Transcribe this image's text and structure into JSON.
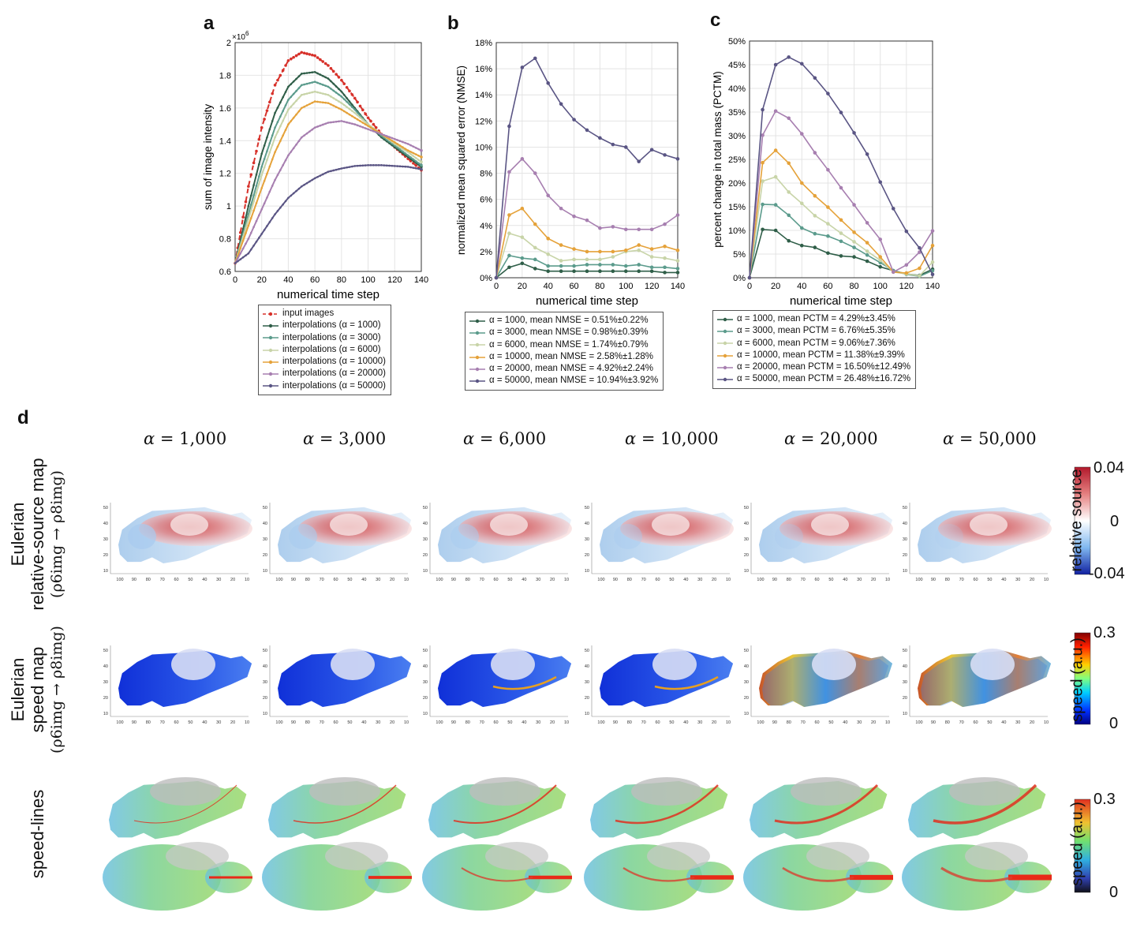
{
  "panels": {
    "a": "a",
    "b": "b",
    "c": "c",
    "d": "d"
  },
  "chart_data": [
    {
      "id": "a",
      "type": "line",
      "xlabel": "numerical time step",
      "ylabel": "sum of image intensity",
      "exponent_label": "×10",
      "exponent_power": "6",
      "xlim": [
        0,
        140
      ],
      "ylim": [
        0.6,
        2.0
      ],
      "xticks": [
        "0",
        "20",
        "40",
        "60",
        "80",
        "100",
        "120",
        "140"
      ],
      "yticks": [
        "0.6",
        "0.8",
        "1",
        "1.2",
        "1.4",
        "1.6",
        "1.8",
        "2"
      ],
      "series": [
        {
          "name": "input images",
          "color": "#d7312a",
          "dashed": true,
          "x": [
            0,
            10,
            20,
            30,
            40,
            50,
            60,
            70,
            80,
            90,
            100,
            110,
            120,
            130,
            140
          ],
          "y": [
            0.65,
            1.12,
            1.48,
            1.74,
            1.89,
            1.94,
            1.92,
            1.86,
            1.77,
            1.66,
            1.54,
            1.44,
            1.36,
            1.29,
            1.22
          ]
        },
        {
          "name": "interpolations (α = 1000)",
          "color": "#2f5e48",
          "dashed": false,
          "x": [
            0,
            10,
            20,
            30,
            40,
            50,
            60,
            70,
            80,
            90,
            100,
            110,
            120,
            130,
            140
          ],
          "y": [
            0.65,
            1.0,
            1.32,
            1.57,
            1.73,
            1.81,
            1.82,
            1.78,
            1.7,
            1.6,
            1.5,
            1.42,
            1.36,
            1.3,
            1.24
          ]
        },
        {
          "name": "interpolations (α = 3000)",
          "color": "#5b9b8c",
          "dashed": false,
          "x": [
            0,
            10,
            20,
            30,
            40,
            50,
            60,
            70,
            80,
            90,
            100,
            110,
            120,
            130,
            140
          ],
          "y": [
            0.65,
            0.95,
            1.24,
            1.48,
            1.65,
            1.74,
            1.76,
            1.73,
            1.67,
            1.59,
            1.5,
            1.43,
            1.37,
            1.31,
            1.25
          ]
        },
        {
          "name": "interpolations (α = 6000)",
          "color": "#c8d4a8",
          "dashed": false,
          "x": [
            0,
            10,
            20,
            30,
            40,
            50,
            60,
            70,
            80,
            90,
            100,
            110,
            120,
            130,
            140
          ],
          "y": [
            0.65,
            0.92,
            1.19,
            1.42,
            1.59,
            1.68,
            1.7,
            1.68,
            1.63,
            1.57,
            1.5,
            1.44,
            1.38,
            1.33,
            1.27
          ]
        },
        {
          "name": "interpolations (α = 10000)",
          "color": "#e5a23a",
          "dashed": false,
          "x": [
            0,
            10,
            20,
            30,
            40,
            50,
            60,
            70,
            80,
            90,
            100,
            110,
            120,
            130,
            140
          ],
          "y": [
            0.65,
            0.88,
            1.11,
            1.33,
            1.5,
            1.6,
            1.64,
            1.63,
            1.59,
            1.54,
            1.49,
            1.44,
            1.39,
            1.34,
            1.3
          ]
        },
        {
          "name": "interpolations (α = 20000)",
          "color": "#a77fb0",
          "dashed": false,
          "x": [
            0,
            10,
            20,
            30,
            40,
            50,
            60,
            70,
            80,
            90,
            100,
            110,
            120,
            130,
            140
          ],
          "y": [
            0.65,
            0.8,
            0.98,
            1.16,
            1.31,
            1.42,
            1.48,
            1.51,
            1.52,
            1.5,
            1.47,
            1.44,
            1.41,
            1.38,
            1.34
          ]
        },
        {
          "name": "interpolations (α = 50000)",
          "color": "#5a5584",
          "dashed": false,
          "x": [
            0,
            10,
            20,
            30,
            40,
            50,
            60,
            70,
            80,
            90,
            100,
            110,
            120,
            130,
            140
          ],
          "y": [
            0.65,
            0.71,
            0.83,
            0.95,
            1.05,
            1.12,
            1.17,
            1.21,
            1.23,
            1.245,
            1.25,
            1.25,
            1.245,
            1.24,
            1.225
          ]
        }
      ],
      "legend": [
        "input images",
        "interpolations (α = 1000)",
        "interpolations (α = 3000)",
        "interpolations (α = 6000)",
        "interpolations (α = 10000)",
        "interpolations (α = 20000)",
        "interpolations (α = 50000)"
      ]
    },
    {
      "id": "b",
      "type": "line",
      "xlabel": "numerical time step",
      "ylabel": "normalized mean squared error (NMSE)",
      "xlim": [
        0,
        140
      ],
      "ylim": [
        0,
        18
      ],
      "xticks": [
        "0",
        "20",
        "40",
        "60",
        "80",
        "100",
        "120",
        "140"
      ],
      "yticks": [
        "0%",
        "2%",
        "4%",
        "6%",
        "8%",
        "10%",
        "12%",
        "14%",
        "16%",
        "18%"
      ],
      "series": [
        {
          "name": "α = 1000",
          "color": "#2f5e48",
          "x": [
            0,
            10,
            20,
            30,
            40,
            50,
            60,
            70,
            80,
            90,
            100,
            110,
            120,
            130,
            140
          ],
          "y": [
            0,
            0.8,
            1.1,
            0.7,
            0.5,
            0.5,
            0.5,
            0.5,
            0.5,
            0.5,
            0.5,
            0.5,
            0.5,
            0.4,
            0.4
          ]
        },
        {
          "name": "α = 3000",
          "color": "#5b9b8c",
          "x": [
            0,
            10,
            20,
            30,
            40,
            50,
            60,
            70,
            80,
            90,
            100,
            110,
            120,
            130,
            140
          ],
          "y": [
            0,
            1.7,
            1.5,
            1.4,
            0.9,
            0.9,
            0.9,
            1.0,
            1.0,
            1.0,
            0.9,
            1.0,
            0.8,
            0.8,
            0.7
          ]
        },
        {
          "name": "α = 6000",
          "color": "#c8d4a8",
          "x": [
            0,
            10,
            20,
            30,
            40,
            50,
            60,
            70,
            80,
            90,
            100,
            110,
            120,
            130,
            140
          ],
          "y": [
            0,
            3.4,
            3.1,
            2.3,
            1.8,
            1.3,
            1.4,
            1.4,
            1.4,
            1.6,
            2.0,
            2.1,
            1.6,
            1.5,
            1.3
          ]
        },
        {
          "name": "α = 10000",
          "color": "#e5a23a",
          "x": [
            0,
            10,
            20,
            30,
            40,
            50,
            60,
            70,
            80,
            90,
            100,
            110,
            120,
            130,
            140
          ],
          "y": [
            0,
            4.8,
            5.3,
            4.1,
            3.0,
            2.5,
            2.2,
            2.0,
            2.0,
            2.0,
            2.1,
            2.5,
            2.2,
            2.4,
            2.1
          ]
        },
        {
          "name": "α = 20000",
          "color": "#a77fb0",
          "x": [
            0,
            10,
            20,
            30,
            40,
            50,
            60,
            70,
            80,
            90,
            100,
            110,
            120,
            130,
            140
          ],
          "y": [
            0,
            8.1,
            9.1,
            8.0,
            6.3,
            5.3,
            4.7,
            4.4,
            3.8,
            3.9,
            3.7,
            3.7,
            3.7,
            4.1,
            4.8
          ]
        },
        {
          "name": "α = 50000",
          "color": "#5a5584",
          "x": [
            0,
            10,
            20,
            30,
            40,
            50,
            60,
            70,
            80,
            90,
            100,
            110,
            120,
            130,
            140
          ],
          "y": [
            0,
            11.6,
            16.1,
            16.8,
            14.9,
            13.3,
            12.1,
            11.3,
            10.7,
            10.2,
            10.0,
            8.9,
            9.8,
            9.4,
            9.1
          ]
        }
      ],
      "legend": [
        "α = 1000, mean NMSE = 0.51%±0.22%",
        "α = 3000, mean NMSE = 0.98%±0.39%",
        "α = 6000, mean NMSE = 1.74%±0.79%",
        "α = 10000, mean NMSE = 2.58%±1.28%",
        "α = 20000, mean NMSE = 4.92%±2.24%",
        "α = 50000, mean NMSE = 10.94%±3.92%"
      ]
    },
    {
      "id": "c",
      "type": "line",
      "xlabel": "numerical time step",
      "ylabel": "percent change in total mass (PCTM)",
      "xlim": [
        0,
        140
      ],
      "ylim": [
        0,
        50
      ],
      "xticks": [
        "0",
        "20",
        "40",
        "60",
        "80",
        "100",
        "120",
        "140"
      ],
      "yticks": [
        "0%",
        "5%",
        "10%",
        "15%",
        "20%",
        "25%",
        "30%",
        "35%",
        "40%",
        "45%",
        "50%"
      ],
      "series": [
        {
          "name": "α = 1000",
          "color": "#2f5e48",
          "x": [
            0,
            10,
            20,
            30,
            40,
            50,
            60,
            70,
            80,
            90,
            100,
            110,
            120,
            130,
            140
          ],
          "y": [
            0,
            10.2,
            10.0,
            7.8,
            6.8,
            6.4,
            5.2,
            4.6,
            4.4,
            3.5,
            2.3,
            1.5,
            0.8,
            0.5,
            1.8
          ]
        },
        {
          "name": "α = 3000",
          "color": "#5b9b8c",
          "x": [
            0,
            10,
            20,
            30,
            40,
            50,
            60,
            70,
            80,
            90,
            100,
            110,
            120,
            130,
            140
          ],
          "y": [
            0,
            15.5,
            15.4,
            13.2,
            10.5,
            9.3,
            8.8,
            7.7,
            6.4,
            4.8,
            3.2,
            1.5,
            0.7,
            0.3,
            1.5
          ]
        },
        {
          "name": "α = 6000",
          "color": "#c8d4a8",
          "x": [
            0,
            10,
            20,
            30,
            40,
            50,
            60,
            70,
            80,
            90,
            100,
            110,
            120,
            130,
            140
          ],
          "y": [
            0,
            20.4,
            21.3,
            18.1,
            15.7,
            13.1,
            11.4,
            9.4,
            7.6,
            5.6,
            3.7,
            1.2,
            0.8,
            0.4,
            3.3
          ]
        },
        {
          "name": "α = 10000",
          "color": "#e5a23a",
          "x": [
            0,
            10,
            20,
            30,
            40,
            50,
            60,
            70,
            80,
            90,
            100,
            110,
            120,
            130,
            140
          ],
          "y": [
            0,
            24.3,
            26.9,
            24.2,
            20.0,
            17.3,
            14.9,
            12.2,
            9.6,
            7.4,
            4.4,
            1.2,
            1.0,
            2.0,
            6.8
          ]
        },
        {
          "name": "α = 20000",
          "color": "#a77fb0",
          "x": [
            0,
            10,
            20,
            30,
            40,
            50,
            60,
            70,
            80,
            90,
            100,
            110,
            120,
            130,
            140
          ],
          "y": [
            0,
            30.1,
            35.2,
            33.7,
            30.4,
            26.4,
            22.8,
            19.0,
            15.4,
            11.6,
            8.1,
            1.2,
            2.7,
            5.4,
            9.9
          ]
        },
        {
          "name": "α = 50000",
          "color": "#5a5584",
          "x": [
            0,
            10,
            20,
            30,
            40,
            50,
            60,
            70,
            80,
            90,
            100,
            110,
            120,
            130,
            140
          ],
          "y": [
            0,
            35.5,
            45.0,
            46.6,
            45.2,
            42.2,
            38.9,
            34.9,
            30.6,
            26.1,
            20.2,
            14.6,
            9.8,
            6.3,
            0.7
          ]
        }
      ],
      "legend": [
        "α = 1000, mean PCTM = 4.29%±3.45%",
        "α = 3000, mean PCTM = 6.76%±5.35%",
        "α = 6000, mean PCTM = 9.06%±7.36%",
        "α = 10000, mean PCTM = 11.38%±9.39%",
        "α = 20000, mean PCTM = 16.50%±12.49%",
        "α = 50000, mean PCTM = 26.48%±16.72%"
      ]
    }
  ],
  "panel_d": {
    "alpha_symbol": "α",
    "alpha_headers": [
      "= 1,000",
      "= 3,000",
      "= 6,000",
      "= 10,000",
      "= 20,000",
      "= 50,000"
    ],
    "row_labels": {
      "source_line1": "Eulerian",
      "source_line2": "relative-source map",
      "speed_line1": "Eulerian",
      "speed_line2": "speed map",
      "transition": "(ρ6img → ρ8img)",
      "speedlines": "speed-lines"
    },
    "axis_ticks_y": [
      "50",
      "40",
      "30",
      "20",
      "10"
    ],
    "axis_ticks_x": [
      "100",
      "90",
      "80",
      "70",
      "60",
      "50",
      "40",
      "30",
      "20",
      "10"
    ],
    "colorbars": {
      "source": {
        "label": "relative source",
        "max": "0.04",
        "mid": "0",
        "min": "-0.04"
      },
      "speed": {
        "label": "speed (a.u.)",
        "max": "0.3",
        "min": "0"
      },
      "speedlines": {
        "label": "speed (a.u.)",
        "max": "0.3",
        "min": "0"
      }
    }
  }
}
